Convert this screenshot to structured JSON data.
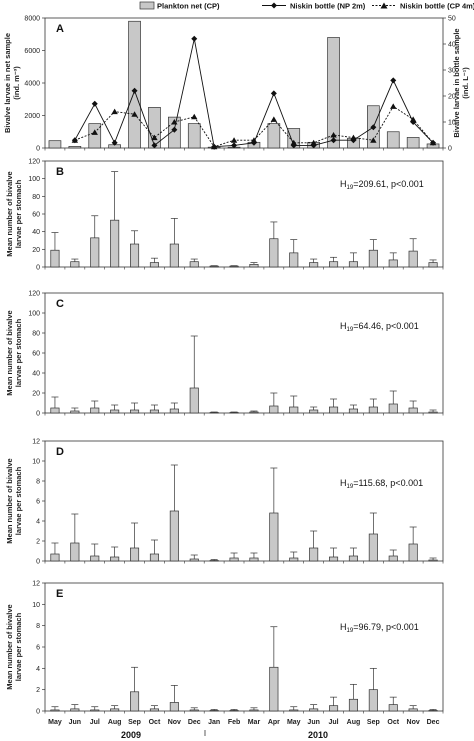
{
  "legend": {
    "plankton": "Plankton net (CP)",
    "niskin2": "Niskin bottle (NP 2m)",
    "niskin4": "Niskin bottle (CP 4m)"
  },
  "years": [
    "2009",
    "2010"
  ],
  "chart_data": [
    {
      "panel": "A",
      "type": "bar",
      "categories": [
        "May",
        "Jun",
        "Jul",
        "Aug",
        "Sep",
        "Oct",
        "Nov",
        "Dec",
        "Jan",
        "Feb",
        "Mar",
        "Apr",
        "May",
        "Jun",
        "Jul",
        "Aug",
        "Sep",
        "Oct",
        "Nov",
        "Dec"
      ],
      "ylabel": "Bivalve larvae in net sample (ind. m⁻³)",
      "ylabel_lines": [
        "Bivalve larvae in net sample",
        "(ind. m⁻³)"
      ],
      "ylim": [
        0,
        8000
      ],
      "yticks": [
        0,
        2000,
        4000,
        6000,
        8000
      ],
      "y2label": "Bivalve larvae in bottle sample (ind. L⁻¹)",
      "y2label_lines": [
        "Bivalve larvae in bottle sample",
        "(ind. L⁻¹)"
      ],
      "y2lim": [
        0,
        50
      ],
      "y2ticks": [
        0,
        10,
        20,
        30,
        40,
        50
      ],
      "series": [
        {
          "name": "Plankton net (CP)",
          "axis": "left",
          "kind": "bar",
          "values": [
            450,
            100,
            1500,
            200,
            7800,
            2500,
            1900,
            1500,
            50,
            50,
            350,
            1500,
            1200,
            350,
            6800,
            600,
            2600,
            1000,
            650,
            250
          ]
        },
        {
          "name": "Niskin bottle (NP 2m)",
          "axis": "right",
          "kind": "line",
          "marker": "diamond",
          "values": [
            null,
            3,
            17,
            2,
            22,
            1,
            7,
            42,
            0.5,
            1,
            2,
            21,
            1,
            1,
            3,
            3,
            8,
            26,
            10,
            2
          ]
        },
        {
          "name": "Niskin bottle (CP 4m)",
          "axis": "right",
          "kind": "line",
          "dash": true,
          "marker": "triangle",
          "values": [
            null,
            3,
            6,
            14,
            13,
            4,
            10,
            12,
            0.5,
            3,
            3,
            11,
            2,
            2,
            5,
            4,
            3,
            16,
            11,
            2
          ]
        }
      ]
    },
    {
      "panel": "B",
      "type": "bar",
      "categories": [
        "May",
        "Jun",
        "Jul",
        "Aug",
        "Sep",
        "Oct",
        "Nov",
        "Dec",
        "Jan",
        "Feb",
        "Mar",
        "Apr",
        "May",
        "Jun",
        "Jul",
        "Aug",
        "Sep",
        "Oct",
        "Nov",
        "Dec"
      ],
      "ylabel": "Mean number of bivalve larvae per stomach",
      "ylabel_lines": [
        "Mean number of bivalve",
        "larvae per stomach"
      ],
      "ylim": [
        0,
        120
      ],
      "yticks": [
        0,
        20,
        40,
        60,
        80,
        100,
        120
      ],
      "values": [
        19,
        6,
        33,
        53,
        26,
        5,
        26,
        6,
        1,
        1,
        3,
        32,
        16,
        5,
        6,
        6,
        19,
        8,
        18,
        5
      ],
      "errors": [
        20,
        3,
        25,
        55,
        15,
        5,
        29,
        3,
        0.5,
        0.5,
        2,
        19,
        15,
        4,
        5,
        10,
        12,
        8,
        14,
        3
      ],
      "stat": {
        "h": "H",
        "df": "19",
        "rest": "=209.61, p<0.001"
      }
    },
    {
      "panel": "C",
      "type": "bar",
      "categories": [
        "May",
        "Jun",
        "Jul",
        "Aug",
        "Sep",
        "Oct",
        "Nov",
        "Dec",
        "Jan",
        "Feb",
        "Mar",
        "Apr",
        "May",
        "Jun",
        "Jul",
        "Aug",
        "Sep",
        "Oct",
        "Nov",
        "Dec"
      ],
      "ylabel": "Mean number of bivalve larvae per stomach",
      "ylabel_lines": [
        "Mean number of bivalve",
        "larvae per stomach"
      ],
      "ylim": [
        0,
        120
      ],
      "yticks": [
        0,
        20,
        40,
        60,
        80,
        100,
        120
      ],
      "values": [
        5,
        2,
        5,
        3,
        3,
        3,
        4,
        25,
        0.5,
        0.5,
        1,
        7,
        6,
        3,
        6,
        4,
        6,
        9,
        5,
        1
      ],
      "errors": [
        11,
        3,
        7,
        5,
        7,
        5,
        6,
        52,
        0.5,
        0.5,
        1,
        13,
        11,
        3,
        8,
        4,
        8,
        13,
        7,
        2
      ],
      "stat": {
        "h": "H",
        "df": "19",
        "rest": "=64.46, p<0.001"
      }
    },
    {
      "panel": "D",
      "type": "bar",
      "categories": [
        "May",
        "Jun",
        "Jul",
        "Aug",
        "Sep",
        "Oct",
        "Nov",
        "Dec",
        "Jan",
        "Feb",
        "Mar",
        "Apr",
        "May",
        "Jun",
        "Jul",
        "Aug",
        "Sep",
        "Oct",
        "Nov",
        "Dec"
      ],
      "ylabel": "Mean number of bivalve larvae per stomach",
      "ylabel_lines": [
        "Mean number of bivalve",
        "larvae per stomach"
      ],
      "ylim": [
        0,
        12
      ],
      "yticks": [
        0,
        2,
        4,
        6,
        8,
        10,
        12
      ],
      "values": [
        0.7,
        1.8,
        0.5,
        0.4,
        1.3,
        0.7,
        5.0,
        0.2,
        0.05,
        0.3,
        0.3,
        4.8,
        0.3,
        1.3,
        0.4,
        0.5,
        2.7,
        0.5,
        1.7,
        0.1
      ],
      "errors": [
        1.1,
        2.9,
        1.2,
        1.0,
        2.5,
        1.4,
        4.6,
        0.4,
        0.1,
        0.5,
        0.5,
        4.5,
        0.6,
        1.7,
        0.9,
        0.8,
        2.1,
        0.6,
        1.7,
        0.2
      ],
      "stat": {
        "h": "H",
        "df": "19",
        "rest": "=115.68, p<0.001"
      }
    },
    {
      "panel": "E",
      "type": "bar",
      "categories": [
        "May",
        "Jun",
        "Jul",
        "Aug",
        "Sep",
        "Oct",
        "Nov",
        "Dec",
        "Jan",
        "Feb",
        "Mar",
        "Apr",
        "May",
        "Jun",
        "Jul",
        "Aug",
        "Sep",
        "Oct",
        "Nov",
        "Dec"
      ],
      "ylabel": "Mean number of bivalve larvae per stomach",
      "ylabel_lines": [
        "Mean number of bivalve",
        "larvae per stomach"
      ],
      "ylim": [
        0,
        12
      ],
      "yticks": [
        0,
        2,
        4,
        6,
        8,
        10,
        12
      ],
      "values": [
        0.1,
        0.2,
        0.1,
        0.2,
        1.8,
        0.2,
        0.8,
        0.1,
        0.05,
        0.05,
        0.1,
        4.1,
        0.1,
        0.2,
        0.5,
        1.1,
        2.0,
        0.6,
        0.2,
        0.05
      ],
      "errors": [
        0.3,
        0.4,
        0.3,
        0.3,
        2.3,
        0.3,
        1.6,
        0.2,
        0.1,
        0.1,
        0.2,
        3.8,
        0.3,
        0.4,
        0.8,
        1.4,
        2.0,
        0.7,
        0.3,
        0.1
      ],
      "stat": {
        "h": "H",
        "df": "19",
        "rest": "=96.79, p<0.001"
      }
    }
  ]
}
